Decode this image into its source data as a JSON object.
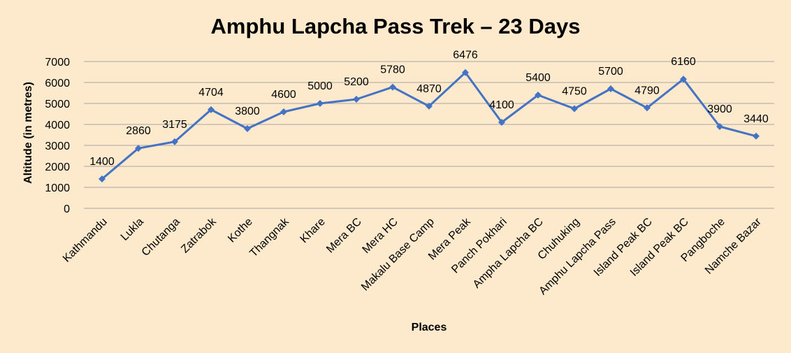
{
  "chart_data": {
    "type": "line",
    "title": "Amphu Lapcha Pass Trek – 23 Days",
    "xlabel": "Places",
    "ylabel": "Altitude (in metres)",
    "ylim": [
      0,
      7000
    ],
    "yticks": [
      "0",
      "1000",
      "2000",
      "3000",
      "4000",
      "5000",
      "6000",
      "7000"
    ],
    "grid": true,
    "legend": "none",
    "categories": [
      "Kathmandu",
      "Lukla",
      "Chutanga",
      "Zatrabok",
      "Kothe",
      "Thangnak",
      "Khare",
      "Mera BC",
      "Mera HC",
      "Makalu Base Camp",
      "Mera Peak",
      "Panch Pokhari",
      "Ampha Lapcha BC",
      "Chuhuking",
      "Amphu Lapcha Pass",
      "Island Peak BC",
      "Island Peak BC",
      "Pangboche",
      "Namche Bazar"
    ],
    "values": [
      1400,
      2860,
      3175,
      4704,
      3800,
      4600,
      5000,
      5200,
      5780,
      4870,
      6476,
      4100,
      5400,
      4750,
      5700,
      4790,
      6160,
      3900,
      3440
    ],
    "line_color": "#4472c4",
    "grid_color": "#a6a6a6"
  }
}
